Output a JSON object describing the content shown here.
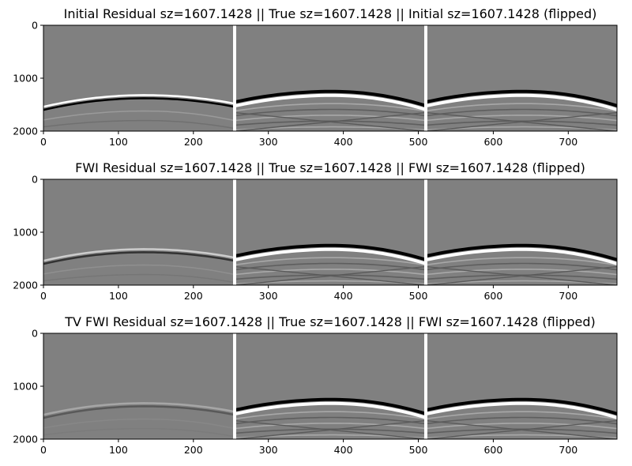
{
  "chart_data": [
    {
      "type": "heatmap",
      "title": "Initial Residual sz=1607.1428   ||   True sz=1607.1428   ||   Initial sz=1607.1428 (flipped)",
      "xlabel": "",
      "ylabel": "",
      "xlim": [
        0,
        765
      ],
      "ylim": [
        2000,
        0
      ],
      "xticks": [
        0,
        100,
        200,
        300,
        400,
        500,
        600,
        700
      ],
      "yticks": [
        0,
        1000,
        2000
      ],
      "panel_separators": [
        255,
        510
      ],
      "colormap": "gray",
      "residual_strength": 1.0,
      "first_arrival_apex": 1320,
      "first_arrival_edge": 1540
    },
    {
      "type": "heatmap",
      "title": "FWI Residual sz=1607.1428   ||   True sz=1607.1428   ||   FWI sz=1607.1428 (flipped)",
      "xlabel": "",
      "ylabel": "",
      "xlim": [
        0,
        765
      ],
      "ylim": [
        2000,
        0
      ],
      "xticks": [
        0,
        100,
        200,
        300,
        400,
        500,
        600,
        700
      ],
      "yticks": [
        0,
        1000,
        2000
      ],
      "panel_separators": [
        255,
        510
      ],
      "colormap": "gray",
      "residual_strength": 0.6,
      "first_arrival_apex": 1320,
      "first_arrival_edge": 1540
    },
    {
      "type": "heatmap",
      "title": "TV FWI Residual sz=1607.1428   ||   True sz=1607.1428   ||   FWI sz=1607.1428 (flipped)",
      "xlabel": "",
      "ylabel": "",
      "xlim": [
        0,
        765
      ],
      "ylim": [
        2000,
        0
      ],
      "xticks": [
        0,
        100,
        200,
        300,
        400,
        500,
        600,
        700
      ],
      "yticks": [
        0,
        1000,
        2000
      ],
      "panel_separators": [
        255,
        510
      ],
      "colormap": "gray",
      "residual_strength": 0.3,
      "first_arrival_apex": 1320,
      "first_arrival_edge": 1540
    }
  ],
  "colors": {
    "background_gray": "#808080",
    "separator": "#ffffff",
    "wave_dark": "#000000",
    "wave_light": "#ffffff"
  }
}
